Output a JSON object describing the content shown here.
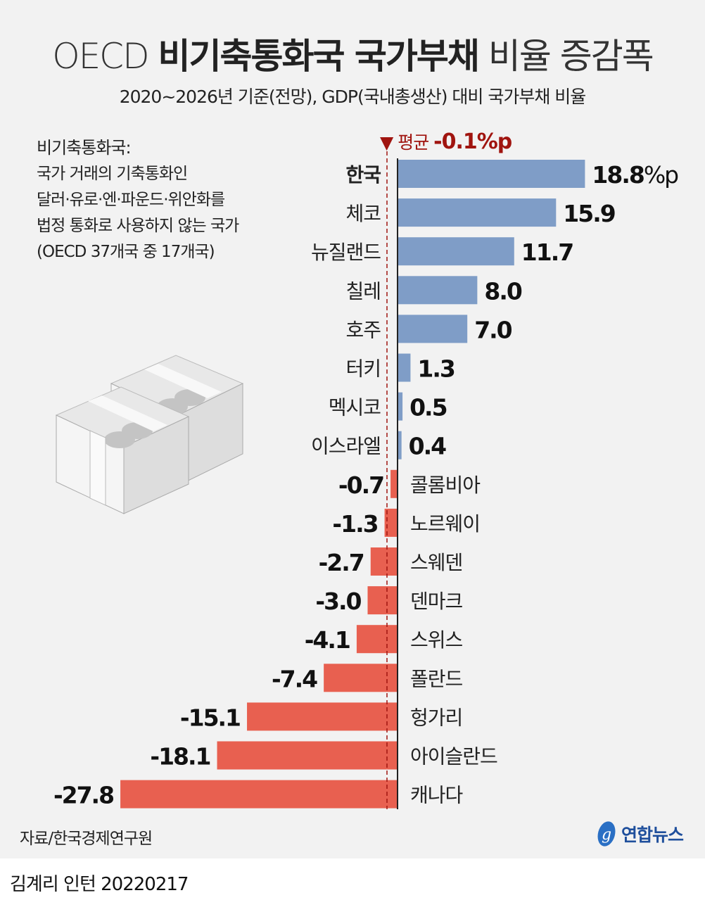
{
  "title": {
    "prefix": "OECD",
    "bold": "비기축통화국 국가부채",
    "suffix": "비율 증감폭"
  },
  "subtitle": "2020~2026년 기준(전망), GDP(국내총생산) 대비 국가부채 비율",
  "note": {
    "heading": "비기축통화국:",
    "lines": [
      "국가 거래의 기축통화인",
      "달러·유로·엔·파운드·위안화를",
      "법정 통화로 사용하지 않는 국가",
      "(OECD 37개국 중 17개국)"
    ]
  },
  "chart_data": {
    "type": "bar",
    "orientation": "horizontal",
    "unit": "%p",
    "average": {
      "label": "평균",
      "value": -0.1,
      "value_label": "-0.1%p"
    },
    "categories": [
      "한국",
      "체코",
      "뉴질랜드",
      "칠레",
      "호주",
      "터키",
      "멕시코",
      "이스라엘",
      "콜롬비아",
      "노르웨이",
      "스웨덴",
      "덴마크",
      "스위스",
      "폴란드",
      "헝가리",
      "아이슬란드",
      "캐나다"
    ],
    "values": [
      18.8,
      15.9,
      11.7,
      8.0,
      7.0,
      1.3,
      0.5,
      0.4,
      -0.7,
      -1.3,
      -2.7,
      -3.0,
      -4.1,
      -7.4,
      -15.1,
      -18.1,
      -27.8
    ],
    "value_labels": [
      "18.8%p",
      "15.9",
      "11.7",
      "8.0",
      "7.0",
      "1.3",
      "0.5",
      "0.4",
      "-0.7",
      "-1.3",
      "-2.7",
      "-3.0",
      "-4.1",
      "-7.4",
      "-15.1",
      "-18.1",
      "-27.8"
    ],
    "highlight": "한국",
    "colors": {
      "positive": "#7f9dc7",
      "negative": "#e86050",
      "average": "#a0140f"
    }
  },
  "source": "자료/한국경제연구원",
  "logo": "연합뉴스",
  "credit": "김계리 인턴  20220217"
}
